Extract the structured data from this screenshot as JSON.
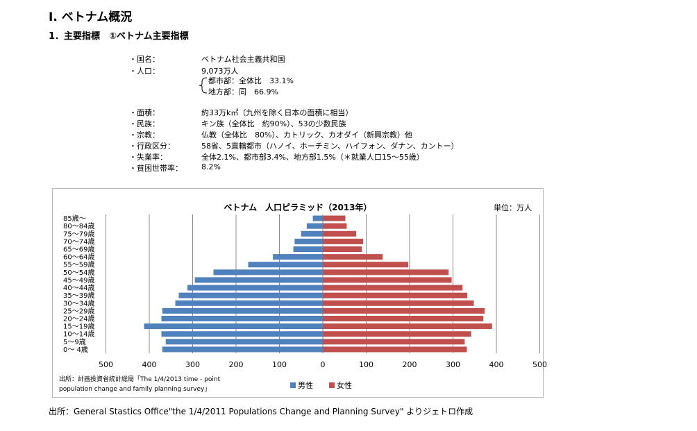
{
  "header": {
    "title": "Ⅰ. ベトナム概況",
    "subtitle": "1．主要指標　①ベトナム主要指標"
  },
  "info": {
    "rows": [
      {
        "label": "・国名：",
        "value": "ベトナム社会主義共和国"
      },
      {
        "label": "・人口：",
        "value": "9,073万人"
      },
      {
        "label": "・面積：",
        "value": "約33万k㎡（九州を除く日本の面積に相当）"
      },
      {
        "label": "・民族：",
        "value": "キン族（全体比　約90%）、53の少数民族"
      },
      {
        "label": "・宗教：",
        "value": "仏教（全体比　80%）、カトリック、カオダイ（新興宗教）他"
      },
      {
        "label": "・行政区分：",
        "value": "58省、5直轄都市（ハノイ、ホーチミン、ハイフォン、ダナン、カントー）"
      },
      {
        "label": "・失業率：",
        "value": "全体2.1%、都市部3.4%、地方部1.5%（＊就業人口15～55歳）"
      },
      {
        "label": "・貧困世帯率：",
        "value": "8.2%"
      }
    ],
    "sub_rows": [
      {
        "value": "都市部：全体比　33.1%"
      },
      {
        "value": "地方部：同　66.9%"
      }
    ]
  },
  "chart_data": {
    "type": "bar",
    "orientation": "horizontal-pyramid",
    "title": "ベトナム　人口ピラミッド（2013年）",
    "unit_label": "単位：万人",
    "categories": [
      "0～ 4歳",
      "5～9歳",
      "10～14歳",
      "15～19歳",
      "20～24歳",
      "25～29歳",
      "30～34歳",
      "35～39歳",
      "40～44歳",
      "45～49歳",
      "50～54歳",
      "55～59歳",
      "60～64歳",
      "65～69歳",
      "70～74歳",
      "75～79歳",
      "80～84歳",
      "85歳～"
    ],
    "series": [
      {
        "name": "男性",
        "color": "#4f81bd",
        "values": [
          370,
          362,
          372,
          412,
          372,
          370,
          340,
          332,
          312,
          295,
          252,
          172,
          115,
          68,
          65,
          50,
          37,
          23
        ]
      },
      {
        "name": "女性",
        "color": "#c0504d",
        "values": [
          332,
          327,
          342,
          390,
          370,
          373,
          348,
          333,
          322,
          297,
          290,
          197,
          138,
          90,
          93,
          77,
          55,
          52
        ]
      }
    ],
    "xlim": [
      -500,
      500
    ],
    "xticks": [
      {
        "value": -500,
        "label": "500"
      },
      {
        "value": -400,
        "label": "400"
      },
      {
        "value": -300,
        "label": "300"
      },
      {
        "value": -200,
        "label": "200"
      },
      {
        "value": -100,
        "label": "100"
      },
      {
        "value": 0,
        "label": "0"
      },
      {
        "value": 100,
        "label": "100"
      },
      {
        "value": 200,
        "label": "200"
      },
      {
        "value": 300,
        "label": "300"
      },
      {
        "value": 400,
        "label": "400"
      },
      {
        "value": 500,
        "label": "500"
      }
    ],
    "grid": "vertical",
    "legend": "bottom-center",
    "source_note": [
      "出所：計画投資省統計総局「The 1/4/2013 time - point",
      "population change and family planning survey」"
    ]
  },
  "footer": {
    "source": "出所：General Stastics Office\"the 1/4/2011 Populations Change and Planning Survey\"  よりジェトロ作成"
  }
}
